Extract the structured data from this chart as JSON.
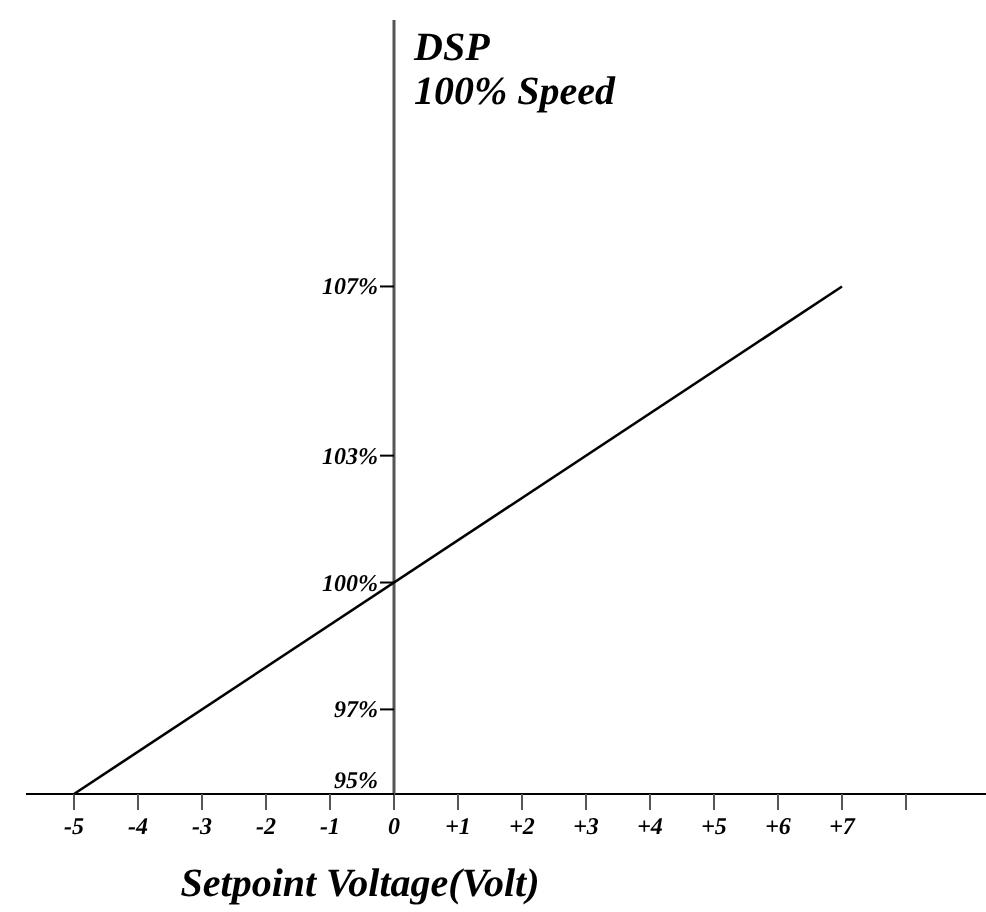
{
  "chart_data": {
    "type": "line",
    "title": "DSP",
    "subtitle": "100% Speed",
    "xlabel": "Setpoint Voltage(Volt)",
    "x": [
      -5,
      7
    ],
    "series": [
      {
        "color": "#000000",
        "values": [
          95,
          107
        ]
      }
    ],
    "xlim": [
      -5.75,
      9.25
    ],
    "ylim": [
      95,
      113.3
    ],
    "xticks": [
      {
        "value": -5,
        "label": "-5"
      },
      {
        "value": -4,
        "label": "-4"
      },
      {
        "value": -3,
        "label": "-3"
      },
      {
        "value": -2,
        "label": "-2"
      },
      {
        "value": -1,
        "label": "-1"
      },
      {
        "value": 0,
        "label": "0"
      },
      {
        "value": 1,
        "label": "+1"
      },
      {
        "value": 2,
        "label": "+2"
      },
      {
        "value": 3,
        "label": "+3"
      },
      {
        "value": 4,
        "label": "+4"
      },
      {
        "value": 5,
        "label": "+5"
      },
      {
        "value": 6,
        "label": "+6"
      },
      {
        "value": 7,
        "label": "+7"
      },
      {
        "value": 8,
        "label": null
      }
    ],
    "yticks": [
      {
        "value": 95,
        "label": "95%"
      },
      {
        "value": 97,
        "label": "97%"
      },
      {
        "value": 100,
        "label": "100%"
      },
      {
        "value": 103,
        "label": "103%"
      },
      {
        "value": 107,
        "label": "107%"
      }
    ],
    "grid": false,
    "marker": "none",
    "line_style": "solid"
  }
}
